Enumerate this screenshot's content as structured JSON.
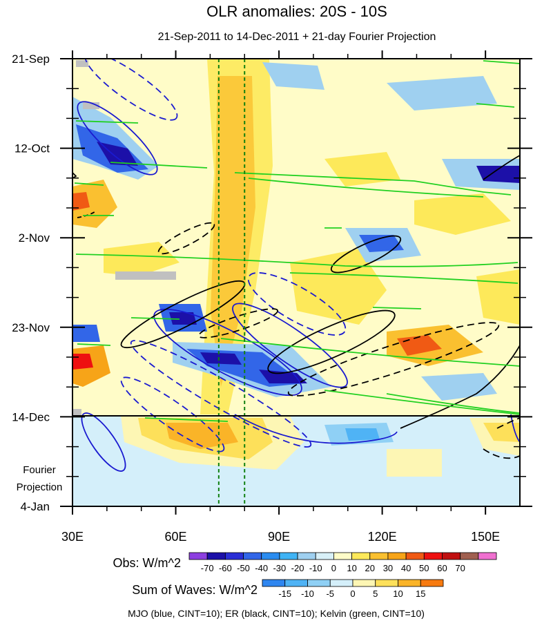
{
  "chart_data": {
    "type": "heatmap",
    "title": "OLR anomalies: 20S - 10S",
    "subtitle": "21-Sep-2011 to 14-Dec-2011 + 21-day Fourier Projection",
    "x_ticks": [
      {
        "label": "30E",
        "value": 30
      },
      {
        "label": "60E",
        "value": 60
      },
      {
        "label": "90E",
        "value": 90
      },
      {
        "label": "120E",
        "value": 120
      },
      {
        "label": "150E",
        "value": 150
      }
    ],
    "x_range": [
      30,
      160
    ],
    "y_ticks": [
      {
        "label": "21-Sep",
        "day": 0
      },
      {
        "label": "12-Oct",
        "day": 21
      },
      {
        "label": "2-Nov",
        "day": 42
      },
      {
        "label": "23-Nov",
        "day": 63
      },
      {
        "label": "14-Dec",
        "day": 84
      },
      {
        "label": "4-Jan",
        "day": 105
      }
    ],
    "y_range_days": [
      0,
      105
    ],
    "projection_start_day": 84,
    "projection_label_line1": "Fourier",
    "projection_label_line2": "Projection",
    "reference_longitudes": [
      72.5,
      80
    ],
    "obs_label": "Obs: W/m^2",
    "obs_levels": [
      -70,
      -60,
      -50,
      -40,
      -30,
      -20,
      -10,
      0,
      10,
      20,
      30,
      40,
      50,
      60,
      70
    ],
    "obs_colors": [
      "#8d3fe0",
      "#1c10a8",
      "#2a2ed6",
      "#3266e8",
      "#2a8cf0",
      "#3fb3f5",
      "#9fd0f0",
      "#d8f0f8",
      "#fffcc8",
      "#fde95a",
      "#fac030",
      "#f7a418",
      "#f05a14",
      "#ee1010",
      "#c01010",
      "#a06050",
      "#f070d0"
    ],
    "waves_label": "Sum of Waves: W/m^2",
    "wave_levels": [
      -15,
      -10,
      -5,
      0,
      5,
      10,
      15
    ],
    "wave_colors": [
      "#2f86f0",
      "#4fb3f5",
      "#8fd0f5",
      "#d4effa",
      "#fdf6b4",
      "#fde05a",
      "#fab428",
      "#f77a10"
    ],
    "footer": "MJO (blue, CINT=10); ER (black, CINT=10); Kelvin (green, CINT=10)",
    "mjo_color": "#1a1ad0",
    "er_color": "#000000",
    "kelvin_color": "#20d020",
    "ref_line_color": "#108010"
  }
}
